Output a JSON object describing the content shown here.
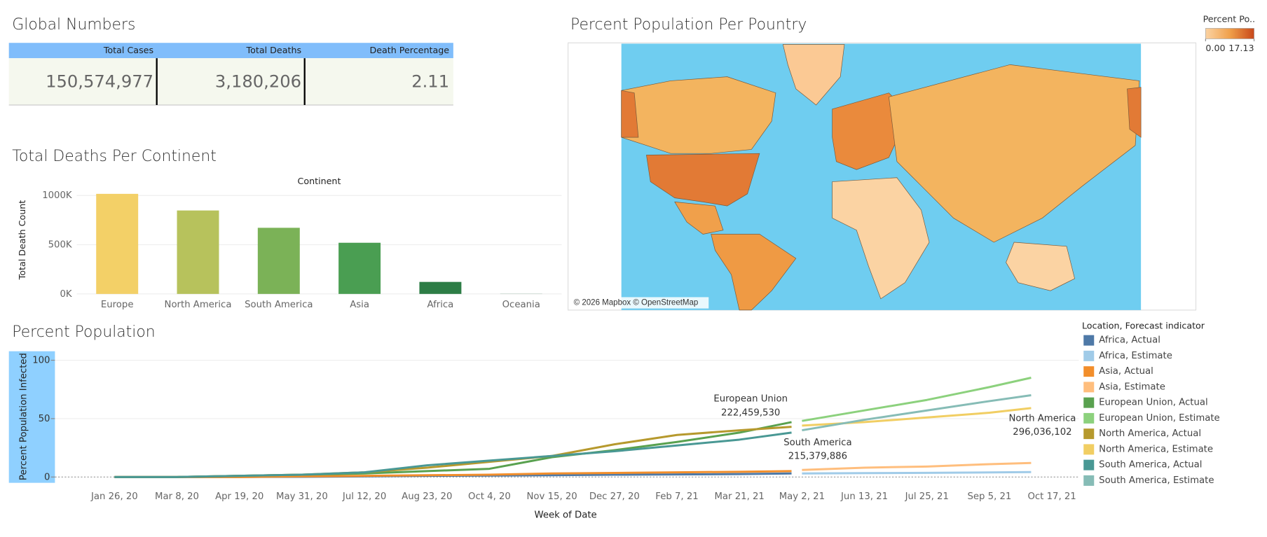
{
  "global_numbers": {
    "title": "Global Numbers",
    "columns": [
      "Total Cases",
      "Total Deaths",
      "Death Percentage"
    ],
    "values": [
      "150,574,977",
      "3,180,206",
      "2.11"
    ]
  },
  "map": {
    "title": "Percent Population Per Pountry",
    "legend_title": "Percent Po..",
    "legend_ticks": [
      {
        "value": 0,
        "label": "0.00"
      },
      {
        "value": 17.13,
        "label": "17.13"
      }
    ],
    "attribution": "© 2026 Mapbox © OpenStreetMap"
  },
  "chart_data": [
    {
      "type": "bar",
      "title": "Total Deaths Per Continent",
      "x_label": "Continent",
      "y_label": "Total Death Count",
      "categories": [
        "Europe",
        "North America",
        "South America",
        "Asia",
        "Africa",
        "Oceania"
      ],
      "values": [
        1017000,
        848000,
        672000,
        520000,
        122000,
        1000
      ],
      "colors": [
        "#f3d067",
        "#b7c25c",
        "#7bb257",
        "#4a9e52",
        "#2d7d46",
        "#1e5f3a"
      ],
      "ylim": [
        0,
        1050000
      ],
      "yticks": [
        {
          "value": 0,
          "label": "0K"
        },
        {
          "value": 500000,
          "label": "500K"
        },
        {
          "value": 1000000,
          "label": "1000K"
        }
      ],
      "grid": true
    },
    {
      "type": "line",
      "title": "Percent Population",
      "x_label": "Week of Date",
      "y_label": "Percent Population Infected",
      "legend_title": "Location, Forecast indicator",
      "x": [
        "2020-01-26",
        "2020-03-08",
        "2020-04-19",
        "2020-05-31",
        "2020-07-12",
        "2020-08-23",
        "2020-10-04",
        "2020-11-15",
        "2020-12-27",
        "2021-02-07",
        "2021-03-21",
        "2021-04-25",
        "2021-05-02",
        "2021-06-13",
        "2021-07-25",
        "2021-09-05",
        "2021-10-03"
      ],
      "xlim": [
        "2019-12-17",
        "2021-11-04"
      ],
      "xticks": [
        {
          "value": "2020-01-26",
          "label": "Jan 26, 20"
        },
        {
          "value": "2020-03-08",
          "label": "Mar 8, 20"
        },
        {
          "value": "2020-04-19",
          "label": "Apr 19, 20"
        },
        {
          "value": "2020-05-31",
          "label": "May 31, 20"
        },
        {
          "value": "2020-07-12",
          "label": "Jul 12, 20"
        },
        {
          "value": "2020-08-23",
          "label": "Aug 23, 20"
        },
        {
          "value": "2020-10-04",
          "label": "Oct 4, 20"
        },
        {
          "value": "2020-11-15",
          "label": "Nov 15, 20"
        },
        {
          "value": "2020-12-27",
          "label": "Dec 27, 20"
        },
        {
          "value": "2021-02-07",
          "label": "Feb 7, 21"
        },
        {
          "value": "2021-03-21",
          "label": "Mar 21, 21"
        },
        {
          "value": "2021-05-02",
          "label": "May 2, 21"
        },
        {
          "value": "2021-06-13",
          "label": "Jun 13, 21"
        },
        {
          "value": "2021-07-25",
          "label": "Jul 25, 21"
        },
        {
          "value": "2021-09-05",
          "label": "Sep 5, 21"
        },
        {
          "value": "2021-10-17",
          "label": "Oct 17, 21"
        }
      ],
      "ylim": [
        -5,
        107
      ],
      "yticks": [
        0,
        50,
        100
      ],
      "grid": true,
      "series": [
        {
          "name": "Africa, Actual",
          "color": "#4e79a7",
          "values": [
            0,
            0,
            0,
            0.2,
            0.5,
            1,
            1.2,
            1.5,
            2,
            2.2,
            2.5,
            3,
            null,
            null,
            null,
            null,
            null
          ]
        },
        {
          "name": "Africa, Estimate",
          "color": "#a0cbe8",
          "values": [
            null,
            null,
            null,
            null,
            null,
            null,
            null,
            null,
            null,
            null,
            null,
            null,
            3,
            3.3,
            3.6,
            3.9,
            4.2
          ]
        },
        {
          "name": "Asia, Actual",
          "color": "#f28e2b",
          "values": [
            0,
            0,
            0,
            0.5,
            1,
            1.5,
            2,
            3,
            3.5,
            4,
            4.5,
            5,
            null,
            null,
            null,
            null,
            null
          ]
        },
        {
          "name": "Asia, Estimate",
          "color": "#ffbe7d",
          "values": [
            null,
            null,
            null,
            null,
            null,
            null,
            null,
            null,
            null,
            null,
            null,
            null,
            6,
            8,
            9,
            11,
            12
          ]
        },
        {
          "name": "European Union, Actual",
          "color": "#59a14f",
          "values": [
            0,
            0,
            1,
            2,
            3,
            5,
            7,
            17,
            23,
            30,
            38,
            47,
            null,
            null,
            null,
            null,
            null
          ]
        },
        {
          "name": "European Union, Estimate",
          "color": "#8cd17d",
          "values": [
            null,
            null,
            null,
            null,
            null,
            null,
            null,
            null,
            null,
            null,
            null,
            null,
            48,
            57,
            66,
            77,
            85
          ]
        },
        {
          "name": "North America, Actual",
          "color": "#b6992d",
          "values": [
            0,
            0,
            1,
            2,
            4,
            8,
            13,
            18,
            28,
            36,
            40,
            43,
            null,
            null,
            null,
            null,
            null
          ]
        },
        {
          "name": "North America, Estimate",
          "color": "#f1ce63",
          "values": [
            null,
            null,
            null,
            null,
            null,
            null,
            null,
            null,
            null,
            null,
            null,
            null,
            44,
            47,
            51,
            55,
            59
          ]
        },
        {
          "name": "South America, Actual",
          "color": "#499894",
          "values": [
            0,
            0,
            1,
            2,
            4,
            10,
            14,
            18,
            22,
            27,
            32,
            38,
            null,
            null,
            null,
            null,
            null
          ]
        },
        {
          "name": "South America, Estimate",
          "color": "#86bcb6",
          "values": [
            null,
            null,
            null,
            null,
            null,
            null,
            null,
            null,
            null,
            null,
            null,
            null,
            40,
            49,
            57,
            65,
            70
          ]
        }
      ],
      "annotations": [
        {
          "text": "European Union",
          "value": "222,459,530"
        },
        {
          "text": "South America",
          "value": "215,379,886"
        },
        {
          "text": "North America",
          "value": "296,036,102"
        }
      ]
    }
  ]
}
